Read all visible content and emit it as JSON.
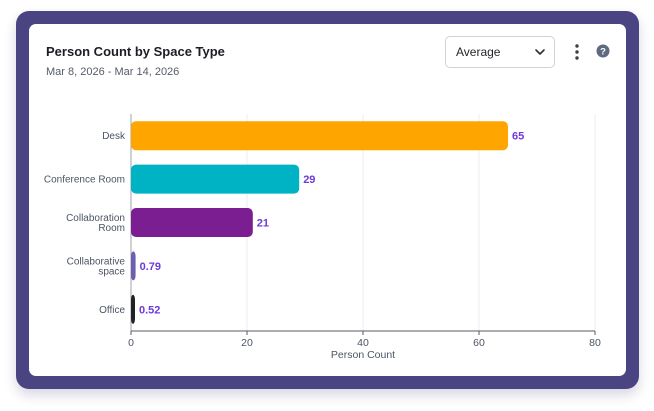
{
  "widget": {
    "title": "Person Count by Space Type",
    "date_range": "Mar 8, 2026 - Mar 14, 2026",
    "aggregation_select": {
      "selected": "Average"
    },
    "icons": {
      "select_chevron": "chevron-down-icon",
      "menu": "more-vertical-icon",
      "help": "help-circle-icon"
    }
  },
  "colors": {
    "frame": "#4b4483",
    "value_label": "#6d3bd9",
    "axis_text": "#4b5563",
    "grid": "#ececec"
  },
  "chart_data": {
    "type": "bar",
    "orientation": "horizontal",
    "categories": [
      [
        "Desk"
      ],
      [
        "Conference Room"
      ],
      [
        "Collaboration",
        "Room"
      ],
      [
        "Collaborative",
        "space"
      ],
      [
        "Office"
      ]
    ],
    "values": [
      65,
      29,
      21,
      0.79,
      0.52
    ],
    "value_labels": [
      "65",
      "29",
      "21",
      "0.79",
      "0.52"
    ],
    "bar_colors": [
      "#ffa500",
      "#00b3c4",
      "#7b1e91",
      "#6a5fb0",
      "#222222"
    ],
    "xlabel": "Person Count",
    "ylabel": "",
    "xlim": [
      0,
      80
    ],
    "xticks": [
      0,
      20,
      40,
      60,
      80
    ],
    "grid": true
  }
}
